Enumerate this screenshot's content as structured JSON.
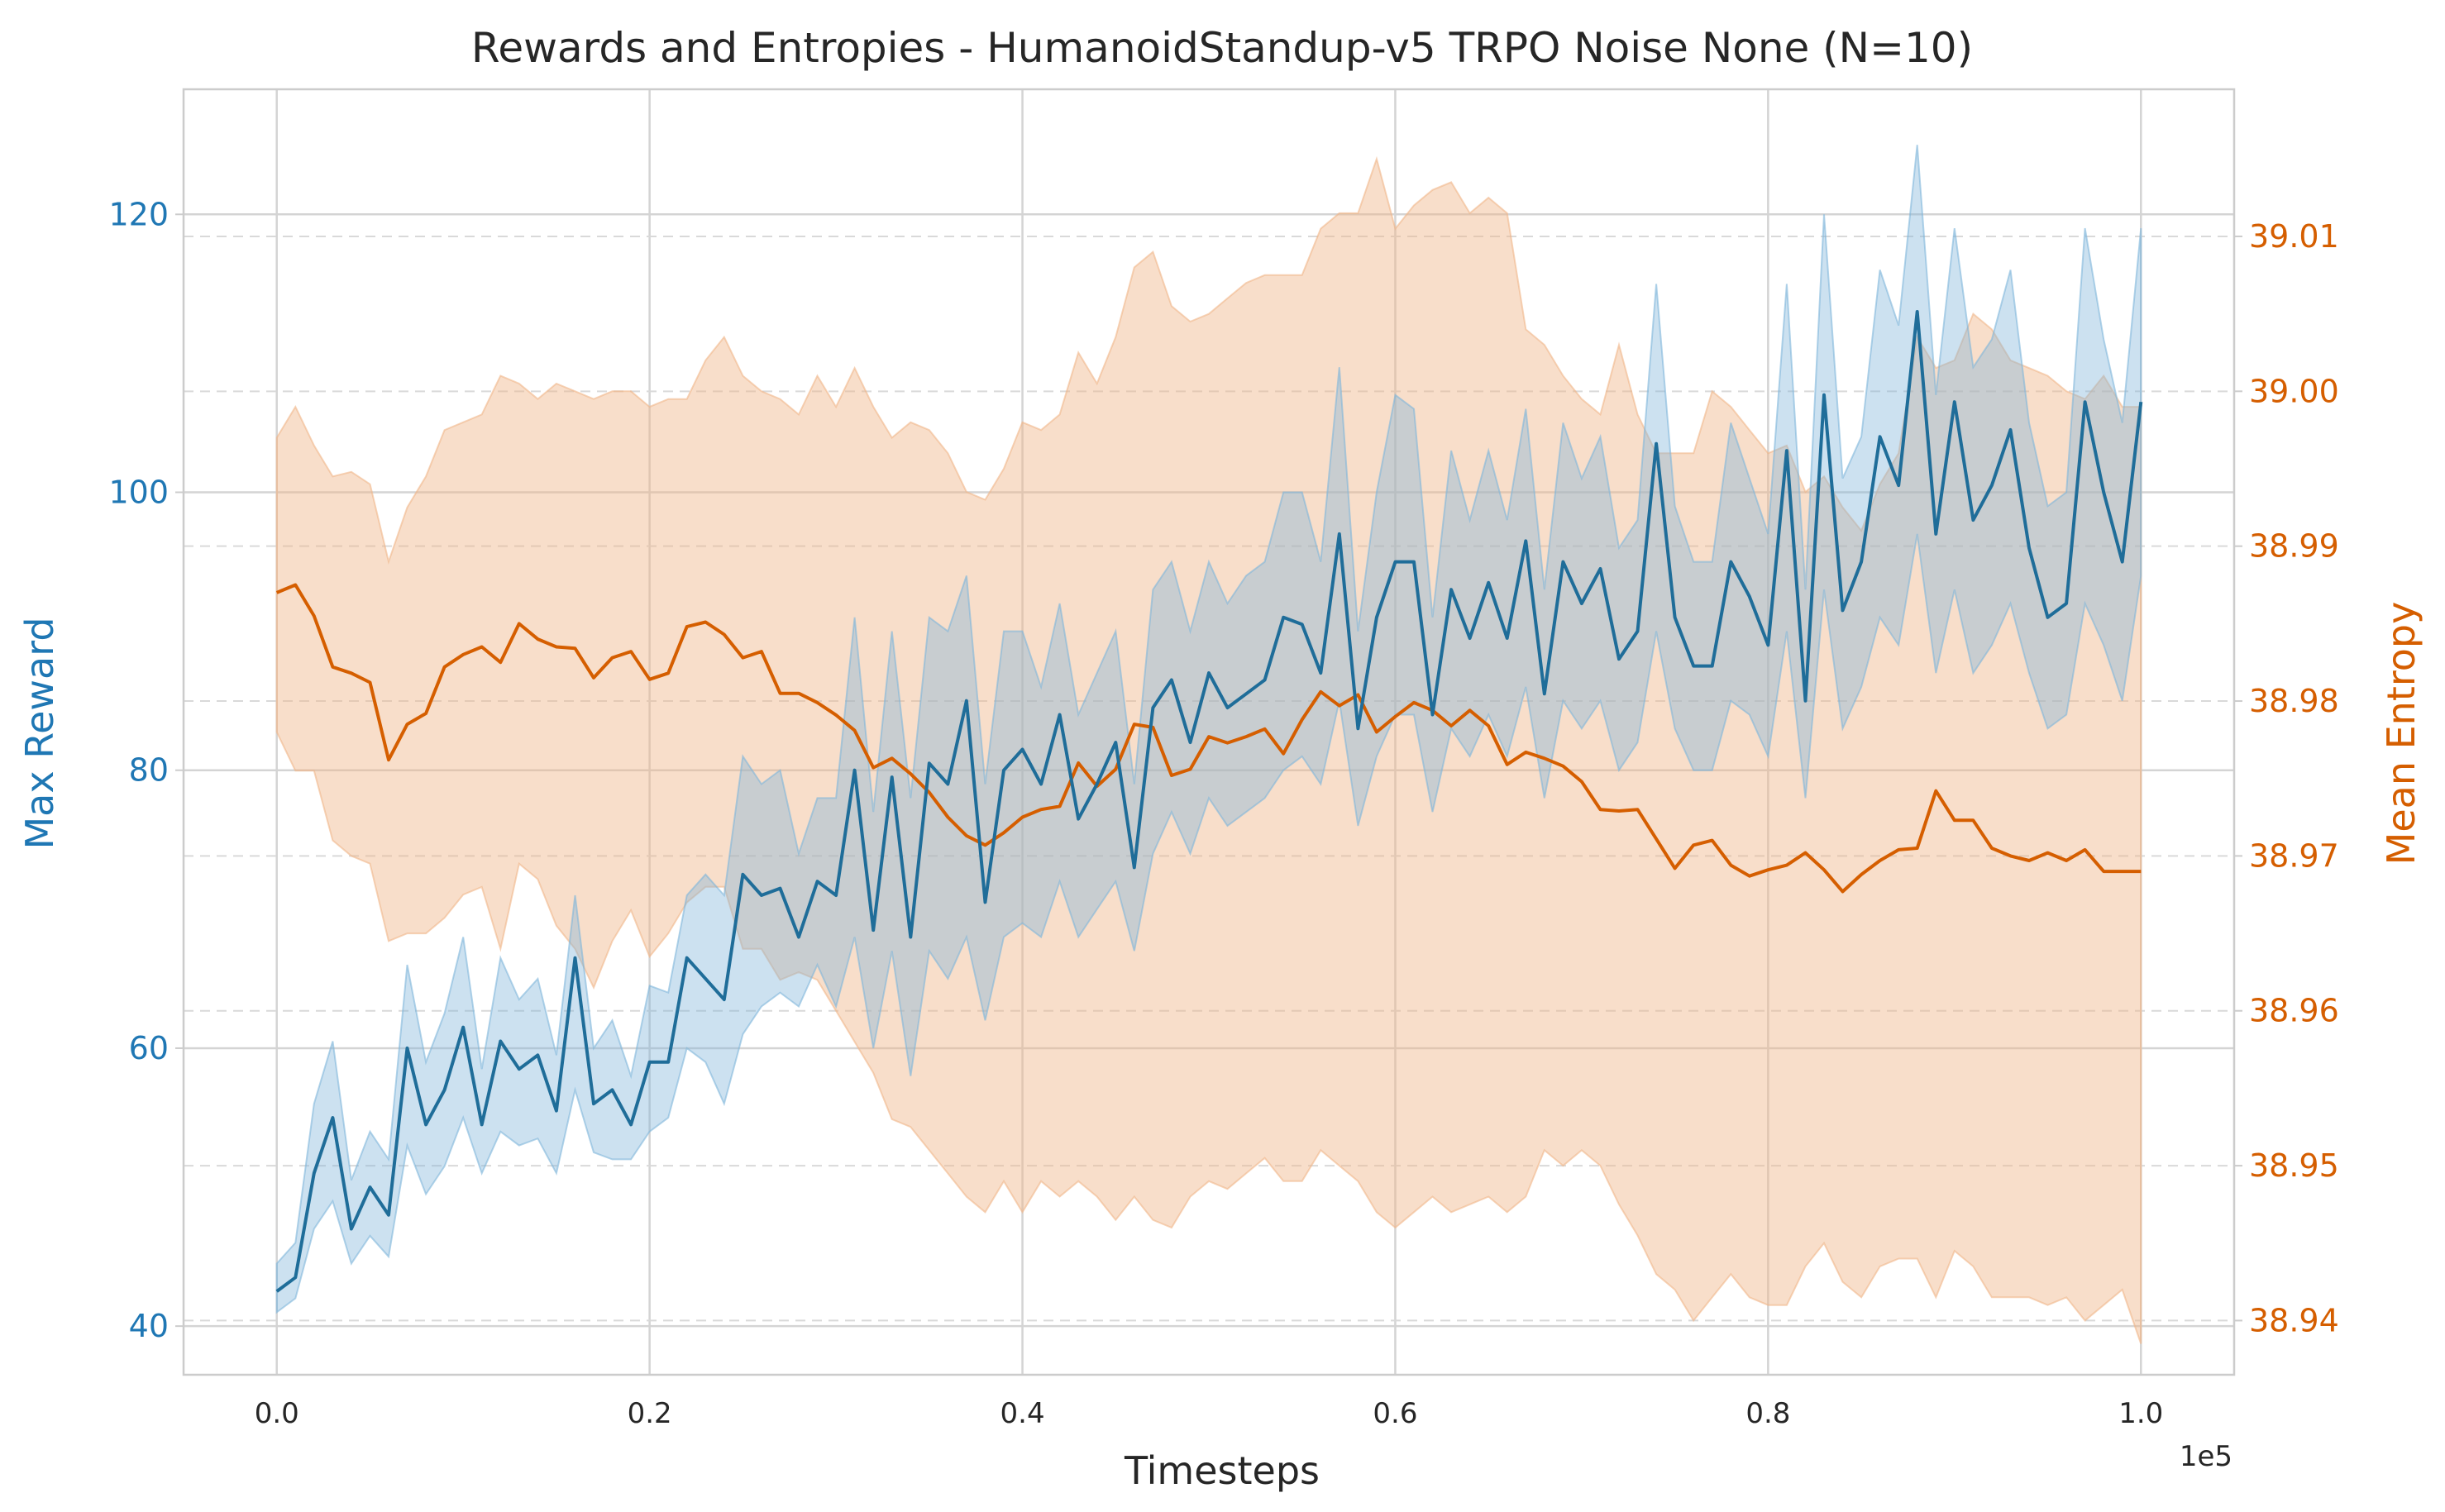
{
  "chart_data": {
    "type": "line",
    "title": "Rewards and Entropies - HumanoidStandup-v5 TRPO Noise None (N=10)",
    "xlabel": "Timesteps",
    "x_offset_label": "1e5",
    "xlim": [
      -0.05,
      1.05
    ],
    "x_ticks": [
      0.0,
      0.2,
      0.4,
      0.6,
      0.8,
      1.0
    ],
    "x_tick_labels": [
      "0.0",
      "0.2",
      "0.4",
      "0.6",
      "0.8",
      "1.0"
    ],
    "left_axis": {
      "label": "Max Reward",
      "color": "#1f77b4",
      "ylim": [
        36.5,
        129
      ],
      "ticks": [
        40,
        60,
        80,
        100,
        120
      ],
      "tick_labels": [
        "40",
        "60",
        "80",
        "100",
        "120"
      ]
    },
    "right_axis": {
      "label": "Mean Entropy",
      "color": "#d55e00",
      "ylim": [
        38.9365,
        39.0195
      ],
      "ticks": [
        38.94,
        38.95,
        38.96,
        38.97,
        38.98,
        38.99,
        39.0,
        39.01
      ],
      "tick_labels": [
        "38.94",
        "38.95",
        "38.96",
        "38.97",
        "38.98",
        "38.99",
        "39.00",
        "39.01"
      ]
    },
    "grid": true,
    "series": [
      {
        "axis": "left",
        "line_color": "#1f6d99",
        "band_color": "#7fb5da",
        "x": [
          0.0,
          0.01,
          0.02,
          0.03,
          0.04,
          0.05,
          0.06,
          0.07,
          0.08,
          0.09,
          0.1,
          0.11,
          0.12,
          0.13,
          0.14,
          0.15,
          0.16,
          0.17,
          0.18,
          0.19,
          0.2,
          0.21,
          0.22,
          0.23,
          0.24,
          0.25,
          0.26,
          0.27,
          0.28,
          0.29,
          0.3,
          0.31,
          0.32,
          0.33,
          0.34,
          0.35,
          0.36,
          0.37,
          0.38,
          0.39,
          0.4,
          0.41,
          0.42,
          0.43,
          0.44,
          0.45,
          0.46,
          0.47,
          0.48,
          0.49,
          0.5,
          0.51,
          0.52,
          0.53,
          0.54,
          0.55,
          0.56,
          0.57,
          0.58,
          0.59,
          0.6,
          0.61,
          0.62,
          0.63,
          0.64,
          0.65,
          0.66,
          0.67,
          0.68,
          0.69,
          0.7,
          0.71,
          0.72,
          0.73,
          0.74,
          0.75,
          0.76,
          0.77,
          0.78,
          0.79,
          0.8,
          0.81,
          0.82,
          0.83,
          0.84,
          0.85,
          0.86,
          0.87,
          0.88,
          0.89,
          0.9,
          0.91,
          0.92,
          0.93,
          0.94,
          0.95,
          0.96,
          0.97,
          0.98,
          0.99,
          1.0
        ],
        "values": [
          42.5,
          43.5,
          51.0,
          55.0,
          47.0,
          50.0,
          48.0,
          60.0,
          54.5,
          57.0,
          61.5,
          54.5,
          60.5,
          58.5,
          59.5,
          55.5,
          66.5,
          56.0,
          57.0,
          54.5,
          59.0,
          59.0,
          66.5,
          65.0,
          63.5,
          72.5,
          71.0,
          71.5,
          68.0,
          72.0,
          71.0,
          80.0,
          68.5,
          79.5,
          68.0,
          80.5,
          79.0,
          85.0,
          70.5,
          80.0,
          81.5,
          79.0,
          84.0,
          76.5,
          79.0,
          82.0,
          73.0,
          84.5,
          86.5,
          82.0,
          87.0,
          84.5,
          85.5,
          86.5,
          91.0,
          90.5,
          87.0,
          97.0,
          83.0,
          91.0,
          95.0,
          95.0,
          84.0,
          93.0,
          89.5,
          93.5,
          89.5,
          96.5,
          85.5,
          95.0,
          92.0,
          94.5,
          88.0,
          90.0,
          103.5,
          91.0,
          87.5,
          87.5,
          95.0,
          92.5,
          89.0,
          103.0,
          85.0,
          107.0,
          91.5,
          95.0,
          104.0,
          100.5,
          113.0,
          97.0,
          106.5,
          98.0,
          100.5,
          104.5,
          96.0,
          91.0,
          92.0,
          106.5,
          100.0,
          95.0,
          106.5
        ],
        "lower": [
          41.0,
          42.0,
          47.0,
          49.0,
          44.5,
          46.5,
          45.0,
          53.0,
          49.5,
          51.5,
          55.0,
          51.0,
          54.0,
          53.0,
          53.5,
          51.0,
          57.0,
          52.5,
          52.0,
          52.0,
          54.0,
          55.0,
          60.0,
          59.0,
          56.0,
          61.0,
          63.0,
          64.0,
          63.0,
          66.0,
          63.0,
          68.0,
          60.0,
          67.0,
          58.0,
          67.0,
          65.0,
          68.0,
          62.0,
          68.0,
          69.0,
          68.0,
          72.0,
          68.0,
          70.0,
          72.0,
          67.0,
          74.0,
          77.0,
          74.0,
          78.0,
          76.0,
          77.0,
          78.0,
          80.0,
          81.0,
          79.0,
          85.0,
          76.0,
          81.0,
          84.0,
          84.0,
          77.0,
          83.0,
          81.0,
          84.0,
          81.0,
          86.0,
          78.0,
          85.0,
          83.0,
          85.0,
          80.0,
          82.0,
          90.0,
          83.0,
          80.0,
          80.0,
          85.0,
          84.0,
          81.0,
          90.0,
          78.0,
          93.0,
          83.0,
          86.0,
          91.0,
          89.0,
          97.0,
          87.0,
          93.0,
          87.0,
          89.0,
          92.0,
          87.0,
          83.0,
          84.0,
          92.0,
          89.0,
          85.0,
          94.0
        ],
        "upper": [
          44.5,
          46.0,
          56.0,
          60.5,
          50.5,
          54.0,
          52.0,
          66.0,
          59.0,
          62.5,
          68.0,
          58.5,
          66.5,
          63.5,
          65.0,
          59.5,
          71.0,
          60.0,
          62.0,
          58.0,
          64.5,
          64.0,
          71.0,
          72.5,
          71.0,
          81.0,
          79.0,
          80.0,
          74.0,
          78.0,
          78.0,
          91.0,
          77.0,
          90.0,
          78.0,
          91.0,
          90.0,
          94.0,
          79.0,
          90.0,
          90.0,
          86.0,
          92.0,
          84.0,
          87.0,
          90.0,
          79.0,
          93.0,
          95.0,
          90.0,
          95.0,
          92.0,
          94.0,
          95.0,
          100.0,
          100.0,
          95.0,
          109.0,
          90.0,
          100.0,
          107.0,
          106.0,
          91.0,
          103.0,
          98.0,
          103.0,
          98.0,
          106.0,
          93.0,
          105.0,
          101.0,
          104.0,
          96.0,
          98.0,
          115.0,
          99.0,
          95.0,
          95.0,
          105.0,
          101.0,
          97.0,
          115.0,
          93.0,
          120.0,
          101.0,
          104.0,
          116.0,
          112.0,
          125.0,
          107.0,
          119.0,
          109.0,
          111.0,
          116.0,
          105.0,
          99.0,
          100.0,
          119.0,
          111.0,
          105.0,
          119.0
        ]
      },
      {
        "axis": "right",
        "line_color": "#d55e00",
        "band_color": "#f0b589",
        "x": [
          0.0,
          0.01,
          0.02,
          0.03,
          0.04,
          0.05,
          0.06,
          0.07,
          0.08,
          0.09,
          0.1,
          0.11,
          0.12,
          0.13,
          0.14,
          0.15,
          0.16,
          0.17,
          0.18,
          0.19,
          0.2,
          0.21,
          0.22,
          0.23,
          0.24,
          0.25,
          0.26,
          0.27,
          0.28,
          0.29,
          0.3,
          0.31,
          0.32,
          0.33,
          0.34,
          0.35,
          0.36,
          0.37,
          0.38,
          0.39,
          0.4,
          0.41,
          0.42,
          0.43,
          0.44,
          0.45,
          0.46,
          0.47,
          0.48,
          0.49,
          0.5,
          0.51,
          0.52,
          0.53,
          0.54,
          0.55,
          0.56,
          0.57,
          0.58,
          0.59,
          0.6,
          0.61,
          0.62,
          0.63,
          0.64,
          0.65,
          0.66,
          0.67,
          0.68,
          0.69,
          0.7,
          0.71,
          0.72,
          0.73,
          0.74,
          0.75,
          0.76,
          0.77,
          0.78,
          0.79,
          0.8,
          0.81,
          0.82,
          0.83,
          0.84,
          0.85,
          0.86,
          0.87,
          0.88,
          0.89,
          0.9,
          0.91,
          0.92,
          0.93,
          0.94,
          0.95,
          0.96,
          0.97,
          0.98,
          0.99,
          1.0
        ],
        "values": [
          38.987,
          38.9875,
          38.9855,
          38.9822,
          38.9818,
          38.9812,
          38.9762,
          38.9785,
          38.9792,
          38.9822,
          38.983,
          38.9835,
          38.9825,
          38.985,
          38.984,
          38.9835,
          38.9834,
          38.9815,
          38.9828,
          38.9832,
          38.9814,
          38.9818,
          38.9848,
          38.9851,
          38.9843,
          38.9828,
          38.9832,
          38.9805,
          38.9805,
          38.9799,
          38.9791,
          38.9781,
          38.9757,
          38.9763,
          38.9753,
          38.9741,
          38.9725,
          38.9713,
          38.9707,
          38.9715,
          38.9725,
          38.973,
          38.9732,
          38.976,
          38.9745,
          38.9756,
          38.9785,
          38.9783,
          38.9752,
          38.9756,
          38.9777,
          38.9773,
          38.9777,
          38.9782,
          38.9766,
          38.9788,
          38.9806,
          38.9797,
          38.9804,
          38.978,
          38.979,
          38.9799,
          38.9794,
          38.9784,
          38.9794,
          38.9784,
          38.9759,
          38.9767,
          38.9763,
          38.9758,
          38.9748,
          38.973,
          38.9729,
          38.973,
          38.9711,
          38.9692,
          38.9707,
          38.971,
          38.9694,
          38.9687,
          38.9691,
          38.9694,
          38.9702,
          38.9691,
          38.9677,
          38.9688,
          38.9697,
          38.9704,
          38.9705,
          38.9742,
          38.9723,
          38.9723,
          38.9705,
          38.97,
          38.9697,
          38.9702,
          38.9697,
          38.9704,
          38.969,
          38.969,
          38.969
        ],
        "lower": [
          38.978,
          38.9755,
          38.9755,
          38.971,
          38.97,
          38.9695,
          38.9645,
          38.965,
          38.965,
          38.966,
          38.9675,
          38.968,
          38.964,
          38.9695,
          38.9685,
          38.9655,
          38.964,
          38.9615,
          38.9645,
          38.9665,
          38.9635,
          38.965,
          38.967,
          38.968,
          38.968,
          38.964,
          38.964,
          38.962,
          38.9625,
          38.962,
          38.96,
          38.958,
          38.956,
          38.953,
          38.9525,
          38.951,
          38.9495,
          38.948,
          38.947,
          38.949,
          38.947,
          38.949,
          38.948,
          38.949,
          38.948,
          38.9465,
          38.948,
          38.9465,
          38.946,
          38.948,
          38.949,
          38.9485,
          38.9495,
          38.9505,
          38.949,
          38.949,
          38.951,
          38.95,
          38.949,
          38.947,
          38.946,
          38.947,
          38.948,
          38.947,
          38.9475,
          38.948,
          38.947,
          38.948,
          38.951,
          38.95,
          38.951,
          38.95,
          38.9475,
          38.9455,
          38.943,
          38.942,
          38.94,
          38.9415,
          38.943,
          38.9415,
          38.941,
          38.941,
          38.9435,
          38.945,
          38.9425,
          38.9415,
          38.9435,
          38.944,
          38.944,
          38.9415,
          38.9445,
          38.9435,
          38.9415,
          38.9415,
          38.9415,
          38.941,
          38.9415,
          38.94,
          38.941,
          38.942,
          38.9385
        ],
        "upper": [
          38.997,
          38.999,
          38.9965,
          38.9945,
          38.9948,
          38.994,
          38.989,
          38.9925,
          38.9945,
          38.9975,
          38.998,
          38.9985,
          39.001,
          39.0005,
          38.9995,
          39.0005,
          39.0,
          38.9995,
          39.0,
          39.0,
          38.999,
          38.9995,
          38.9995,
          39.002,
          39.0035,
          39.001,
          39.0,
          38.9995,
          38.9985,
          39.001,
          38.999,
          39.0015,
          38.999,
          38.997,
          38.998,
          38.9975,
          38.996,
          38.9935,
          38.993,
          38.995,
          38.998,
          38.9975,
          38.9985,
          39.0025,
          39.0005,
          39.0035,
          39.008,
          39.009,
          39.0055,
          39.0045,
          39.005,
          39.006,
          39.007,
          39.0075,
          39.0075,
          39.0075,
          39.0105,
          39.0115,
          39.0115,
          39.015,
          39.0105,
          39.012,
          39.013,
          39.0135,
          39.0115,
          39.0125,
          39.0115,
          39.004,
          39.003,
          39.001,
          38.9995,
          38.9985,
          39.003,
          38.9985,
          38.996,
          38.996,
          38.996,
          39.0,
          38.999,
          38.9975,
          38.996,
          38.9965,
          38.9935,
          38.9945,
          38.9925,
          38.991,
          38.994,
          38.996,
          39.0035,
          39.0015,
          39.002,
          39.005,
          39.004,
          39.002,
          39.0015,
          39.001,
          39.0,
          38.9995,
          39.001,
          38.999,
          38.999
        ]
      }
    ]
  }
}
